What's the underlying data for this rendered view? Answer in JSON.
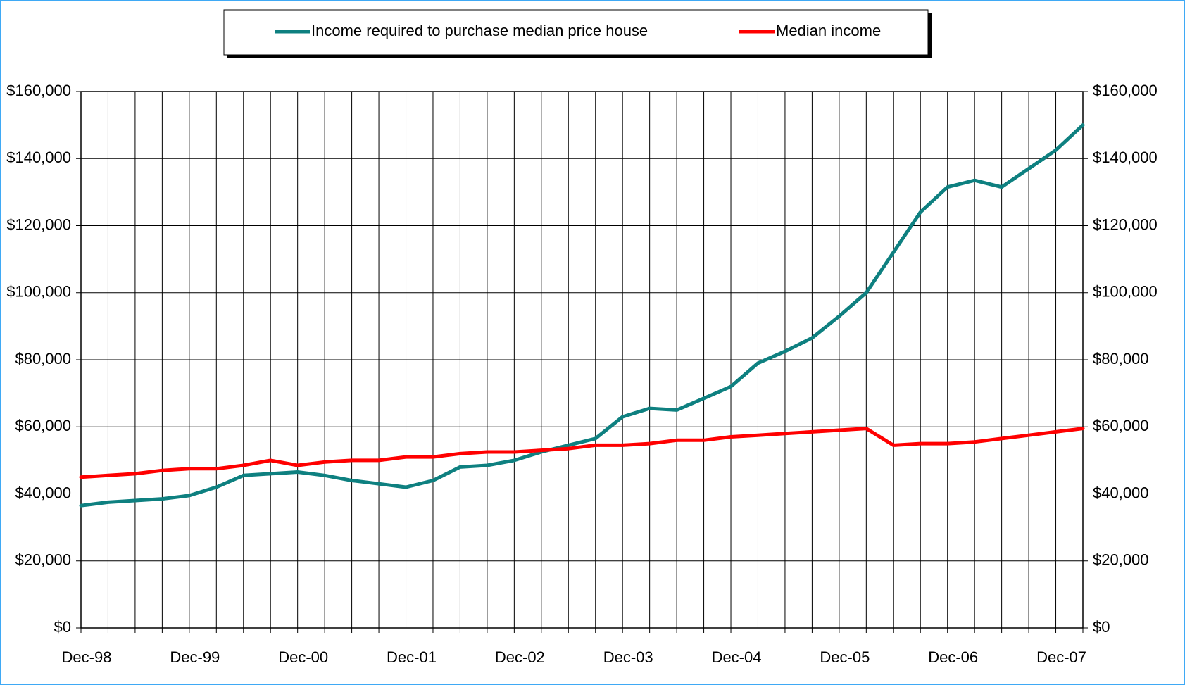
{
  "chart_data": {
    "type": "line",
    "categories": [
      "Dec-98",
      null,
      null,
      null,
      "Dec-99",
      null,
      null,
      null,
      "Dec-00",
      null,
      null,
      null,
      "Dec-01",
      null,
      null,
      null,
      "Dec-02",
      null,
      null,
      null,
      "Dec-03",
      null,
      null,
      null,
      "Dec-04",
      null,
      null,
      null,
      "Dec-05",
      null,
      null,
      null,
      "Dec-06",
      null,
      null,
      null,
      "Dec-07",
      null
    ],
    "series": [
      {
        "name": "Income required to purchase median price house",
        "color": "#0e8080",
        "values": [
          36500,
          37500,
          38000,
          38500,
          39500,
          42000,
          45500,
          46000,
          46500,
          45500,
          44000,
          43000,
          42000,
          44000,
          48000,
          48500,
          50000,
          52500,
          54500,
          56500,
          63000,
          65500,
          65000,
          68500,
          72000,
          79000,
          82500,
          86500,
          93000,
          100000,
          112000,
          124000,
          131500,
          133500,
          131500,
          137000,
          142500,
          150000
        ]
      },
      {
        "name": "Median income",
        "color": "#ff0000",
        "values": [
          45000,
          45500,
          46000,
          47000,
          47500,
          47500,
          48500,
          50000,
          48500,
          49500,
          50000,
          50000,
          51000,
          51000,
          52000,
          52500,
          52500,
          53000,
          53500,
          54500,
          54500,
          55000,
          56000,
          56000,
          57000,
          57500,
          58000,
          58500,
          59000,
          59500,
          54500,
          55000,
          55000,
          55500,
          56500,
          57500,
          58500,
          59500
        ]
      }
    ],
    "ylim": [
      0,
      160000
    ],
    "yticks": [
      {
        "value": 0,
        "label": "$0"
      },
      {
        "value": 20000,
        "label": "$20,000"
      },
      {
        "value": 40000,
        "label": "$40,000"
      },
      {
        "value": 60000,
        "label": "$60,000"
      },
      {
        "value": 80000,
        "label": "$80,000"
      },
      {
        "value": 100000,
        "label": "$100,000"
      },
      {
        "value": 120000,
        "label": "$120,000"
      },
      {
        "value": 140000,
        "label": "$140,000"
      },
      {
        "value": 160000,
        "label": "$160,000"
      }
    ],
    "y2lim": [
      0,
      160000
    ],
    "y2ticks": [
      {
        "value": 0,
        "label": "$0"
      },
      {
        "value": 20000,
        "label": "$20,000"
      },
      {
        "value": 40000,
        "label": "$40,000"
      },
      {
        "value": 60000,
        "label": "$60,000"
      },
      {
        "value": 80000,
        "label": "$80,000"
      },
      {
        "value": 100000,
        "label": "$100,000"
      },
      {
        "value": 120000,
        "label": "$120,000"
      },
      {
        "value": 140000,
        "label": "$140,000"
      },
      {
        "value": 160000,
        "label": "$160,000"
      }
    ],
    "grid": true,
    "legend": "top"
  }
}
